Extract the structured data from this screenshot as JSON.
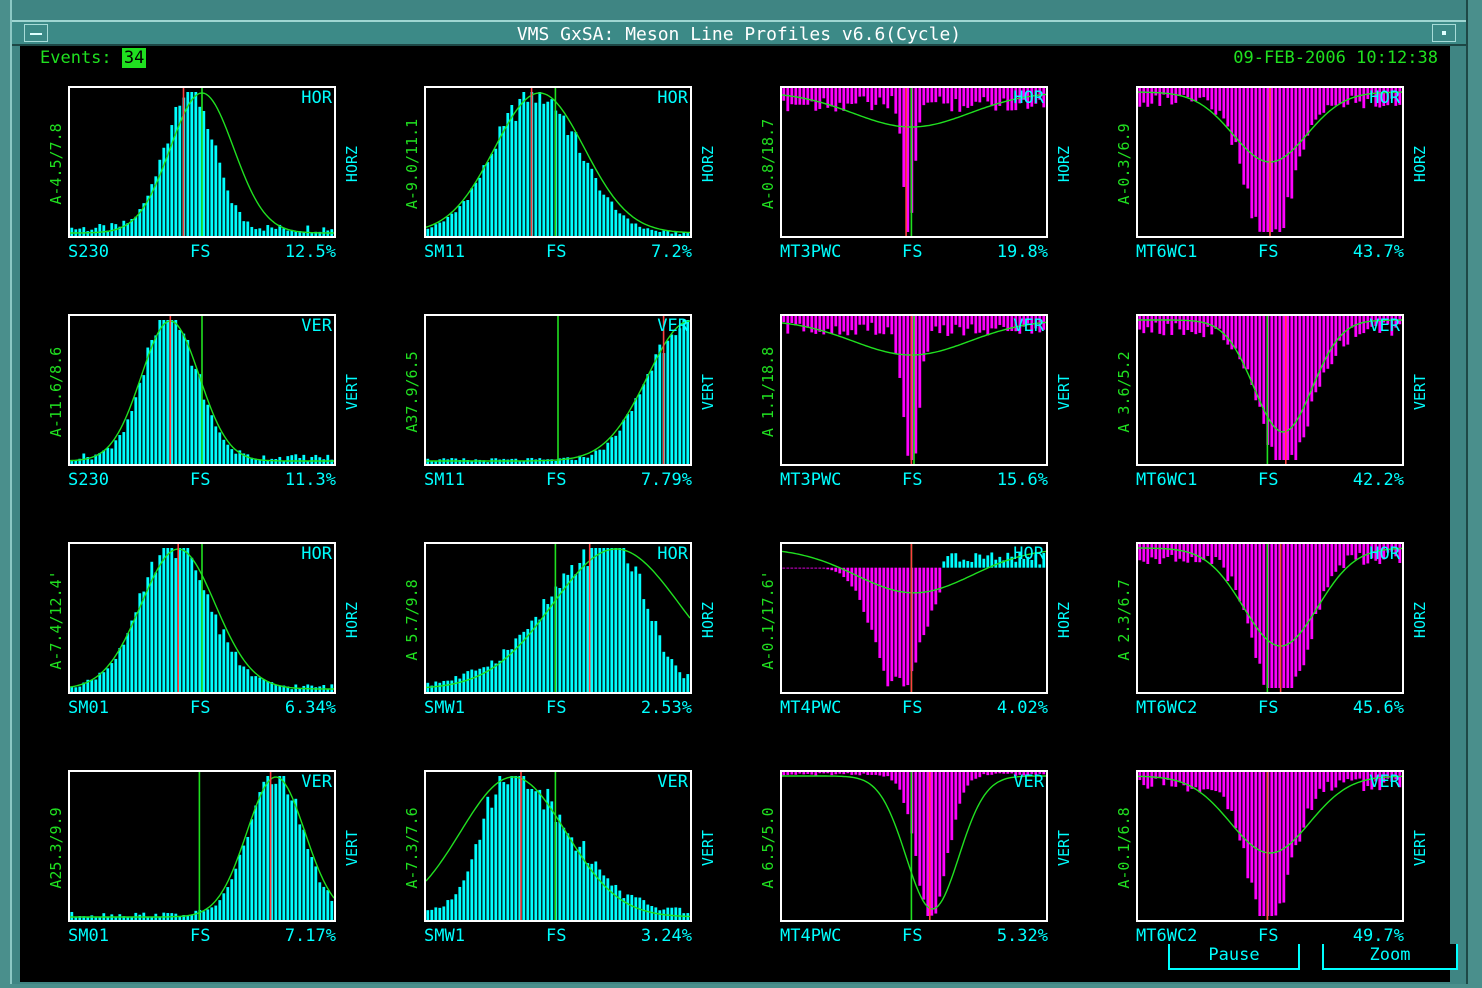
{
  "window": {
    "title": "VMS GxSA: Meson Line Profiles v6.6(Cycle)"
  },
  "header": {
    "events_label": "Events:",
    "events_value": "34",
    "datetime": "09-FEB-2006 10:12:38"
  },
  "colors": {
    "positive_bars": "#00ffff",
    "negative_bars": "#ff00ff",
    "fit_curve": "#20e020",
    "center_marker": "#ff4040"
  },
  "controls": {
    "pause_label": "Pause",
    "zoom_label": "Zoom"
  },
  "chart_data": [
    {
      "type": "bar",
      "chamber": "S230",
      "mode": "FS",
      "percent": "12.5%",
      "plane": "HOR",
      "axis_label": "HORZ",
      "ylabel": "A-4.5/7.8",
      "shape": "peak",
      "center": 0.45,
      "width": 0.09,
      "tail": 0.06,
      "fit_center": 0.5,
      "fit_width": 0.12,
      "green_line": 0.5,
      "red_line": 0.43
    },
    {
      "type": "bar",
      "chamber": "SM11",
      "mode": "FS",
      "percent": "7.2%",
      "plane": "HOR",
      "axis_label": "HORZ",
      "ylabel": "A-9.0/11.1",
      "shape": "peak",
      "center": 0.42,
      "width": 0.16,
      "tail": 0.02,
      "fit_center": 0.43,
      "fit_width": 0.17,
      "green_line": 0.49,
      "red_line": 0.4
    },
    {
      "type": "bar",
      "chamber": "MT3PWC",
      "mode": "FS",
      "percent": "19.8%",
      "plane": "HOR",
      "axis_label": "HORZ",
      "ylabel": "A-0.8/18.7",
      "shape": "dip",
      "center": 0.48,
      "width": 0.02,
      "tail": 0.12,
      "fit_center": 0.49,
      "fit_width": 0.22,
      "fit_depth": 0.25,
      "green_line": 0.49,
      "red_line": 0.47
    },
    {
      "type": "bar",
      "chamber": "MT6WC1",
      "mode": "FS",
      "percent": "43.7%",
      "plane": "HOR",
      "axis_label": "HORZ",
      "ylabel": "A-0.3/6.9",
      "shape": "dip",
      "center": 0.5,
      "width": 0.09,
      "tail": 0.1,
      "fit_center": 0.5,
      "fit_width": 0.14,
      "fit_depth": 0.5,
      "green_line": 0.5,
      "red_line": 0.5
    },
    {
      "type": "bar",
      "chamber": "S230",
      "mode": "FS",
      "percent": "11.3%",
      "plane": "VER",
      "axis_label": "VERT",
      "ylabel": "A-11.6/8.6",
      "shape": "peak",
      "center": 0.38,
      "width": 0.1,
      "tail": 0.05,
      "fit_center": 0.38,
      "fit_width": 0.11,
      "green_line": 0.5,
      "red_line": 0.38
    },
    {
      "type": "bar",
      "chamber": "SM11",
      "mode": "FS",
      "percent": "7.79%",
      "plane": "VER",
      "axis_label": "VERT",
      "ylabel": "A37.9/6.5",
      "shape": "peak",
      "center": 0.98,
      "width": 0.14,
      "tail": 0.03,
      "fit_center": 1.0,
      "fit_width": 0.16,
      "green_line": 0.5,
      "red_line": 0.9
    },
    {
      "type": "bar",
      "chamber": "MT3PWC",
      "mode": "FS",
      "percent": "15.6%",
      "plane": "VER",
      "axis_label": "VERT",
      "ylabel": "A 1.1/18.8",
      "shape": "dip",
      "center": 0.49,
      "width": 0.03,
      "tail": 0.1,
      "fit_center": 0.49,
      "fit_width": 0.22,
      "fit_depth": 0.25,
      "green_line": 0.5,
      "red_line": 0.49
    },
    {
      "type": "bar",
      "chamber": "MT6WC1",
      "mode": "FS",
      "percent": "42.2%",
      "plane": "VER",
      "axis_label": "VERT",
      "ylabel": "A 3.6/5.2",
      "shape": "dip",
      "center": 0.56,
      "width": 0.1,
      "tail": 0.1,
      "fit_center": 0.55,
      "fit_width": 0.11,
      "fit_depth": 0.8,
      "green_line": 0.49,
      "red_line": 0.56
    },
    {
      "type": "bar",
      "chamber": "SM01",
      "mode": "FS",
      "percent": "6.34%",
      "plane": "HOR",
      "axis_label": "HORZ",
      "ylabel": "A-7.4/12.4'",
      "shape": "peak",
      "center": 0.4,
      "width": 0.13,
      "tail": 0.04,
      "fit_center": 0.41,
      "fit_width": 0.14,
      "green_line": 0.5,
      "red_line": 0.41
    },
    {
      "type": "bar",
      "chamber": "SMW1",
      "mode": "FS",
      "percent": "2.53%",
      "plane": "HOR",
      "axis_label": "HORZ",
      "ylabel": "A 5.7/9.8",
      "shape": "skew",
      "center": 0.72,
      "width": 0.25,
      "tail": 0.05,
      "fit_center": 0.72,
      "fit_width": 0.24,
      "green_line": 0.49,
      "red_line": 0.62
    },
    {
      "type": "bar",
      "chamber": "MT4PWC",
      "mode": "FS",
      "percent": "4.02%",
      "plane": "HOR",
      "axis_label": "HORZ",
      "ylabel": "A-0.1/17.6'",
      "shape": "dip-mixed",
      "center": 0.44,
      "width": 0.09,
      "tail": 0.0,
      "fit_center": 0.5,
      "fit_width": 0.22,
      "fit_depth": 0.32,
      "green_line": 0.49,
      "red_line": 0.49
    },
    {
      "type": "bar",
      "chamber": "MT6WC2",
      "mode": "FS",
      "percent": "45.6%",
      "plane": "HOR",
      "axis_label": "HORZ",
      "ylabel": "A 2.3/6.7",
      "shape": "dip",
      "center": 0.54,
      "width": 0.1,
      "tail": 0.1,
      "fit_center": 0.54,
      "fit_width": 0.14,
      "fit_depth": 0.7,
      "green_line": 0.49,
      "red_line": 0.54
    },
    {
      "type": "bar",
      "chamber": "SM01",
      "mode": "FS",
      "percent": "7.17%",
      "plane": "VER",
      "axis_label": "VERT",
      "ylabel": "A25.3/9.9",
      "shape": "peak",
      "center": 0.78,
      "width": 0.1,
      "tail": 0.04,
      "fit_center": 0.78,
      "fit_width": 0.11,
      "green_line": 0.49,
      "red_line": 0.76
    },
    {
      "type": "bar",
      "chamber": "SMW1",
      "mode": "FS",
      "percent": "3.24%",
      "plane": "VER",
      "axis_label": "VERT",
      "ylabel": "A-7.3/7.6",
      "shape": "skew-left",
      "center": 0.32,
      "width": 0.18,
      "tail": 0.06,
      "fit_center": 0.33,
      "fit_width": 0.2,
      "green_line": 0.49,
      "red_line": 0.36
    },
    {
      "type": "bar",
      "chamber": "MT4PWC",
      "mode": "FS",
      "percent": "5.32%",
      "plane": "VER",
      "axis_label": "VERT",
      "ylabel": "A 6.5/5.0",
      "shape": "dip",
      "center": 0.57,
      "width": 0.06,
      "tail": 0.02,
      "fit_center": 0.57,
      "fit_width": 0.1,
      "fit_depth": 0.95,
      "green_line": 0.49,
      "red_line": 0.56
    },
    {
      "type": "bar",
      "chamber": "MT6WC2",
      "mode": "FS",
      "percent": "49.7%",
      "plane": "VER",
      "axis_label": "VERT",
      "ylabel": "A-0.1/6.8",
      "shape": "dip",
      "center": 0.5,
      "width": 0.08,
      "tail": 0.1,
      "fit_center": 0.5,
      "fit_width": 0.15,
      "fit_depth": 0.55,
      "green_line": 0.49,
      "red_line": 0.49
    }
  ]
}
